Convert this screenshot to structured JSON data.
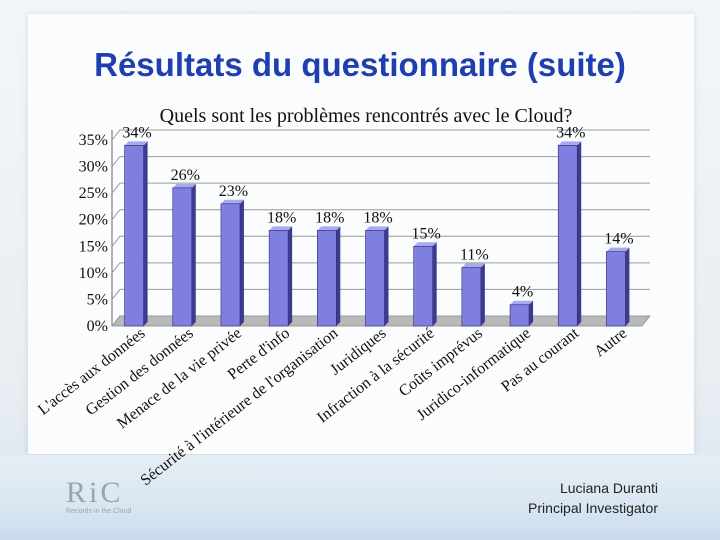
{
  "slide": {
    "title": "Résultats du questionnaire (suite)",
    "presenter_name": "Luciana Duranti",
    "presenter_role": "Principal Investigator",
    "logo_text": "RiC",
    "logo_subtext": "Records in the Cloud"
  },
  "colors": {
    "title": "#1f3fb0",
    "bar": "#7f7fe0",
    "bar_side": "#3b3b8f"
  },
  "chart_data": {
    "type": "bar",
    "title": "Quels sont les problèmes rencontrés avec le Cloud?",
    "xlabel": "",
    "ylabel": "",
    "ylim": [
      0,
      35
    ],
    "yticks": [
      "0%",
      "5%",
      "10%",
      "15%",
      "20%",
      "25%",
      "30%",
      "35%"
    ],
    "grid": true,
    "categories": [
      "L'accès aux données",
      "Gestion des données",
      "Menace de la vie privée",
      "Perte d'info",
      "Sécurité à l'intérieure de l'organisation",
      "Juridiques",
      "Infraction à la sécurité",
      "Coûts imprévus",
      "Juridico-informatique",
      "Pas au courant",
      "Autre"
    ],
    "values": [
      34,
      26,
      23,
      18,
      18,
      18,
      15,
      11,
      4,
      34,
      14
    ],
    "labels": [
      "34%",
      "26%",
      "23%",
      "18%",
      "18%",
      "18%",
      "15%",
      "11%",
      "4%",
      "34%",
      "14%"
    ]
  }
}
